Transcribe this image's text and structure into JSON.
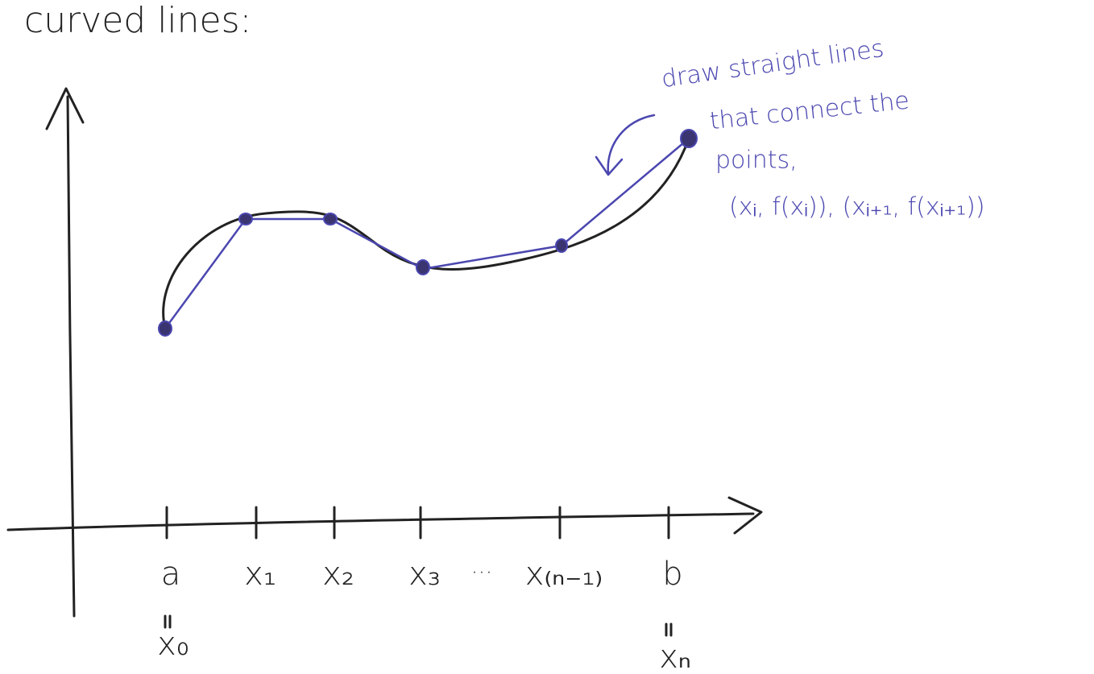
{
  "title": "curved lines:",
  "annotation": {
    "lines": [
      "draw straight lines",
      "that connect the",
      "points,",
      "(xᵢ, f(xᵢ)), (xᵢ₊₁, f(xᵢ₊₁))"
    ]
  },
  "axis": {
    "ticks": [
      {
        "label": "a",
        "sublabel": "x₀"
      },
      {
        "label": "x₁"
      },
      {
        "label": "x₂"
      },
      {
        "label": "x₃"
      },
      {
        "label": "x₍ₙ₋₁₎"
      },
      {
        "label": "b",
        "sublabel": "xₙ"
      }
    ],
    "ellipsis": "···"
  }
}
